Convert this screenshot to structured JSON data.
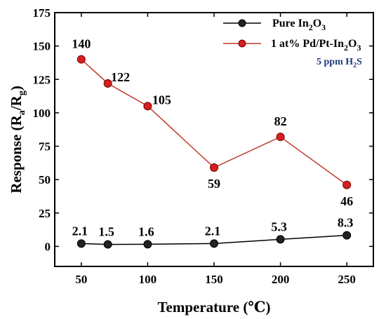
{
  "chart_data": {
    "type": "line",
    "x": [
      50,
      70,
      100,
      150,
      200,
      250
    ],
    "series": [
      {
        "name": "Pure In2O3",
        "values": [
          2.1,
          1.5,
          1.6,
          2.1,
          5.3,
          8.3
        ],
        "labels": [
          "2.1",
          "1.5",
          "1.6",
          "2.1",
          "5.3",
          "8.3"
        ],
        "line_color": "#000000",
        "marker_color": "#222222"
      },
      {
        "name": "1 at% Pd/Pt-In2O3",
        "values": [
          140,
          122,
          105,
          59,
          82,
          46
        ],
        "labels": [
          "140",
          "122",
          "105",
          "59",
          "82",
          "46"
        ],
        "line_color": "#c0392b",
        "marker_color": "#d42020"
      }
    ],
    "xlabel": "Temperature (℃)",
    "ylabel": "Response (Ra/Rg)",
    "xlim": [
      30,
      270
    ],
    "ylim": [
      -15,
      175
    ],
    "xticks": [
      50,
      100,
      150,
      200,
      250
    ],
    "yticks": [
      0,
      25,
      50,
      75,
      100,
      125,
      150,
      175
    ],
    "annotation": "5 ppm H2S",
    "annotation_color": "#1f3b7a",
    "legend_position": "top-right",
    "grid": false
  }
}
